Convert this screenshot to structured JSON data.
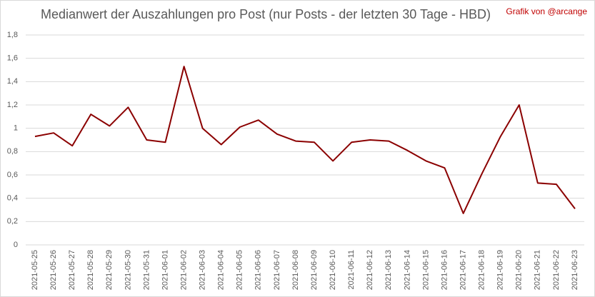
{
  "chart_data": {
    "type": "line",
    "title": "Medianwert der Auszahlungen pro Post (nur Posts - der letzten 30 Tage - HBD)",
    "annotation": "Grafik von @arcange",
    "categories": [
      "2021-05-25",
      "2021-05-26",
      "2021-05-27",
      "2021-05-28",
      "2021-05-29",
      "2021-05-30",
      "2021-05-31",
      "2021-06-01",
      "2021-06-02",
      "2021-06-03",
      "2021-06-04",
      "2021-06-05",
      "2021-06-06",
      "2021-06-07",
      "2021-06-08",
      "2021-06-09",
      "2021-06-10",
      "2021-06-11",
      "2021-06-12",
      "2021-06-13",
      "2021-06-14",
      "2021-06-15",
      "2021-06-16",
      "2021-06-17",
      "2021-06-18",
      "2021-06-19",
      "2021-06-20",
      "2021-06-21",
      "2021-06-22",
      "2021-06-23"
    ],
    "values": [
      0.93,
      0.96,
      0.85,
      1.12,
      1.02,
      1.18,
      0.9,
      0.88,
      1.53,
      1.0,
      0.86,
      1.01,
      1.07,
      0.95,
      0.89,
      0.88,
      0.72,
      0.88,
      0.9,
      0.89,
      0.81,
      0.72,
      0.66,
      0.27,
      0.61,
      0.93,
      1.2,
      0.53,
      0.52,
      0.31
    ],
    "color": "#8b0000",
    "ylim": [
      0,
      1.8
    ],
    "yticks": [
      0,
      {
        "value": 0.2,
        "label": "0,2"
      },
      {
        "value": 0.4,
        "label": "0,4"
      },
      {
        "value": 0.6,
        "label": "0,6"
      },
      {
        "value": 0.8,
        "label": "0,8"
      },
      1,
      {
        "value": 1.2,
        "label": "1,2"
      },
      {
        "value": 1.4,
        "label": "1,4"
      },
      {
        "value": 1.6,
        "label": "1,6"
      },
      {
        "value": 1.8,
        "label": "1,8"
      }
    ],
    "grid": true
  }
}
